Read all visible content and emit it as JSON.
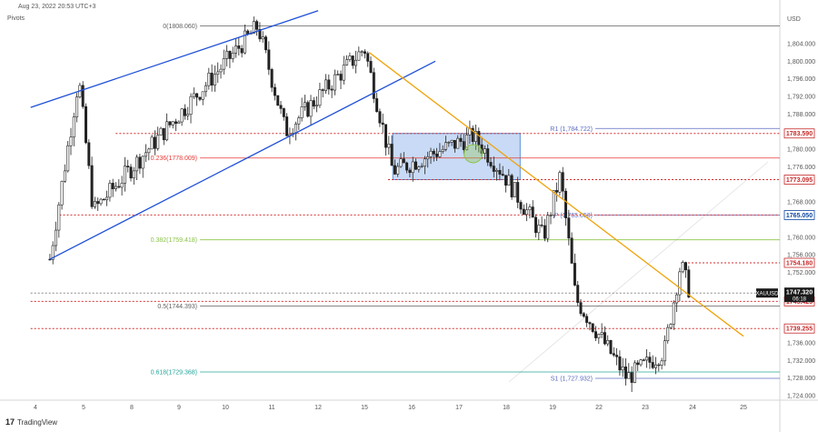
{
  "header": {
    "indicator_label": "Pivots",
    "timestamp": "Aug 23, 2022 20:53 UTC+3"
  },
  "brand": {
    "logo_text": "TradingView"
  },
  "chart_data": {
    "type": "candlestick",
    "instrument": "XAUUSD",
    "currency_label": "USD",
    "x_ticks": [
      "4",
      "5",
      "8",
      "9",
      "10",
      "11",
      "12",
      "15",
      "16",
      "17",
      "18",
      "19",
      "22",
      "23",
      "24",
      "25"
    ],
    "y_ticks": [
      1804.0,
      1800.0,
      1796.0,
      1792.0,
      1788.0,
      1780.0,
      1776.0,
      1768.0,
      1760.0,
      1756.0,
      1752.0,
      1736.0,
      1732.0,
      1728.0,
      1724.0
    ],
    "ylim": [
      1722.0,
      1812.0
    ],
    "y_tick_format": "1,000.000 style",
    "grid": false,
    "current_price": {
      "label": "XAUUSD",
      "value": "1747.320",
      "countdown": "06:18"
    },
    "price_tags": [
      {
        "value": "1783.590",
        "color": "#c62828"
      },
      {
        "value": "1773.095",
        "color": "#c62828"
      },
      {
        "value": "1765.050",
        "color": "#0d47a1"
      },
      {
        "value": "1754.180",
        "color": "#c62828"
      },
      {
        "value": "1745.425",
        "color": "#c62828"
      },
      {
        "value": "1739.255",
        "color": "#c62828"
      }
    ],
    "horizontal_levels": [
      {
        "price": 1783.59,
        "style": "dotted",
        "color": "#d32f2f",
        "x_start": "7"
      },
      {
        "price": 1773.095,
        "style": "dotted",
        "color": "#d32f2f",
        "x_start": "15.5"
      },
      {
        "price": 1765.05,
        "style": "dotted",
        "color": "#d32f2f",
        "x_start": "4.5"
      },
      {
        "price": 1754.18,
        "style": "dotted",
        "color": "#d32f2f",
        "x_start": "23.75"
      },
      {
        "price": 1745.425,
        "style": "dotted",
        "color": "#d32f2f",
        "x_start": "3.9"
      },
      {
        "price": 1739.255,
        "style": "dotted",
        "color": "#d32f2f",
        "x_start": "3.9"
      },
      {
        "price": 1747.32,
        "style": "dotted",
        "color": "#888888",
        "x_start": "3.9"
      }
    ],
    "fibonacci": {
      "color_line": "#9e9e9e",
      "levels": [
        {
          "label": "0(1808.060)",
          "price": 1808.06,
          "color": "#5f5f5f"
        },
        {
          "label": "0.236(1778.009)",
          "price": 1778.009,
          "color": "#e53935"
        },
        {
          "label": "0.382(1759.418)",
          "price": 1759.418,
          "color": "#8bc34a"
        },
        {
          "label": "0.5(1744.393)",
          "price": 1744.393,
          "color": "#5f5f5f"
        },
        {
          "label": "0.618(1729.368)",
          "price": 1729.368,
          "color": "#26a69a"
        }
      ]
    },
    "pivots": [
      {
        "label": "R1 (1,784.722)",
        "price": 1784.722,
        "color": "#5c6bc0"
      },
      {
        "label": "P (1,765.053)",
        "price": 1765.053,
        "color": "#5c6bc0"
      },
      {
        "label": "S1 (1,727.932)",
        "price": 1727.932,
        "color": "#5c6bc0"
      }
    ],
    "trendlines": [
      {
        "name": "upper-channel",
        "color": "#1e4fd8",
        "from": {
          "x": "3.9",
          "price": 1789.5
        },
        "to": {
          "x": "12",
          "price": 1811.5
        }
      },
      {
        "name": "lower-channel",
        "color": "#1e4fd8",
        "from": {
          "x": "4.3",
          "price": 1755.0
        },
        "to": {
          "x": "16.5",
          "price": 1800.0
        }
      },
      {
        "name": "descending-resistance",
        "color": "#f0a30a",
        "from": {
          "x": "15.1",
          "price": 1802.0
        },
        "to": {
          "x": "25",
          "price": 1737.5
        }
      }
    ],
    "rectangle": {
      "color": "#5b8fd6",
      "x_start": "15.6",
      "x_end": "18.3",
      "price_top": 1783.59,
      "price_bottom": 1773.095
    },
    "highlight": {
      "x": "17.3",
      "price": 1779.0,
      "color": "#8bc34a"
    },
    "key_points": [
      {
        "x": "4.3",
        "price": 1755.0
      },
      {
        "x": "4.9",
        "price": 1796.0
      },
      {
        "x": "5.6",
        "price": 1766.0
      },
      {
        "x": "10.7",
        "price": 1808.0
      },
      {
        "x": "11.3",
        "price": 1784.0
      },
      {
        "x": "15.0",
        "price": 1803.0
      },
      {
        "x": "15.6",
        "price": 1775.0
      },
      {
        "x": "17.3",
        "price": 1783.0
      },
      {
        "x": "17.9",
        "price": 1775.0
      },
      {
        "x": "18.8",
        "price": 1760.0
      },
      {
        "x": "19.5",
        "price": 1774.0
      },
      {
        "x": "20.5",
        "price": 1746.0
      },
      {
        "x": "22.6",
        "price": 1728.0
      },
      {
        "x": "23.4",
        "price": 1734.0
      },
      {
        "x": "23.75",
        "price": 1754.0
      },
      {
        "x": "23.95",
        "price": 1747.3
      }
    ]
  }
}
